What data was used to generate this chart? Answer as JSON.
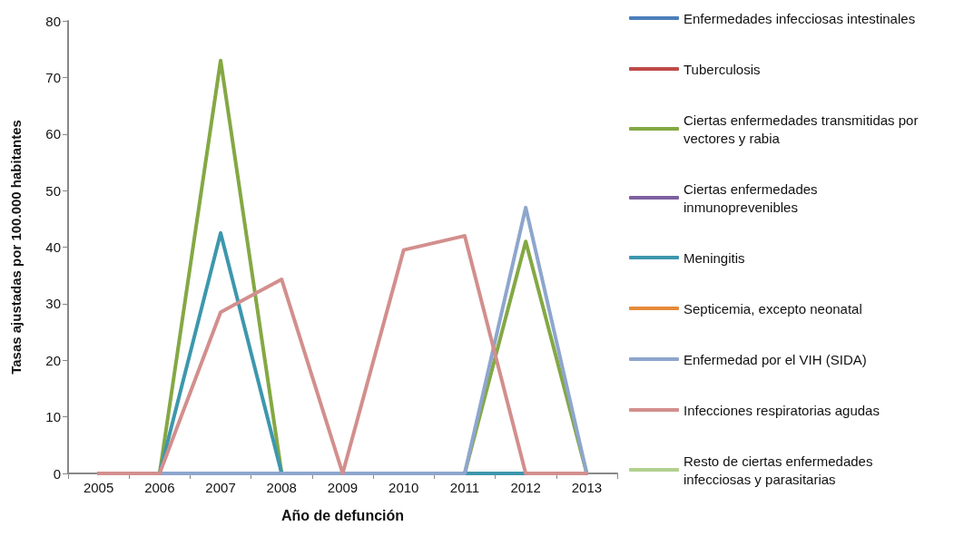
{
  "chart_data": {
    "type": "line",
    "xlabel": "Año de defunción",
    "ylabel": "Tasas ajustadas por 100.000 habitantes",
    "categories": [
      "2005",
      "2006",
      "2007",
      "2008",
      "2009",
      "2010",
      "2011",
      "2012",
      "2013"
    ],
    "ylim": [
      0,
      80
    ],
    "yticks": [
      0,
      10,
      20,
      30,
      40,
      50,
      60,
      70,
      80
    ],
    "grid": false,
    "legend": "right",
    "marker": "none",
    "series": [
      {
        "name": "Enfermedades infecciosas intestinales",
        "color": "#4a7ebb",
        "values": [
          null,
          null,
          null,
          null,
          null,
          null,
          null,
          null,
          null
        ]
      },
      {
        "name": "Tuberculosis",
        "color": "#be4b48",
        "values": [
          null,
          null,
          null,
          null,
          null,
          null,
          null,
          null,
          null
        ]
      },
      {
        "name": "Ciertas enfermedades transmitidas por vectores y rabia",
        "color": "#84a844",
        "values": [
          0,
          0,
          73,
          0,
          0,
          0,
          0,
          41,
          0
        ]
      },
      {
        "name": "Ciertas enfermedades inmunoprevenibles",
        "color": "#7d60a0",
        "values": [
          null,
          null,
          null,
          null,
          null,
          null,
          null,
          null,
          null
        ]
      },
      {
        "name": "Meningitis",
        "color": "#3d97ad",
        "values": [
          0,
          0,
          42.5,
          0,
          0,
          0,
          0,
          0,
          0
        ]
      },
      {
        "name": "Septicemia, excepto neonatal",
        "color": "#e68a3a",
        "values": [
          null,
          null,
          null,
          null,
          null,
          null,
          null,
          null,
          null
        ]
      },
      {
        "name": "Enfermedad por el VIH (SIDA)",
        "color": "#8ea6cd",
        "values": [
          null,
          0,
          0,
          0,
          0,
          0,
          0,
          47,
          0
        ]
      },
      {
        "name": "Infecciones respiratorias agudas",
        "color": "#d28f8d",
        "values": [
          0,
          0,
          28.5,
          34.3,
          0,
          39.5,
          42,
          0,
          0
        ]
      },
      {
        "name": "Resto de ciertas enfermedades infecciosas y parasitarias",
        "color": "#b2d08f",
        "values": [
          null,
          null,
          null,
          null,
          null,
          null,
          null,
          null,
          null
        ]
      }
    ]
  }
}
